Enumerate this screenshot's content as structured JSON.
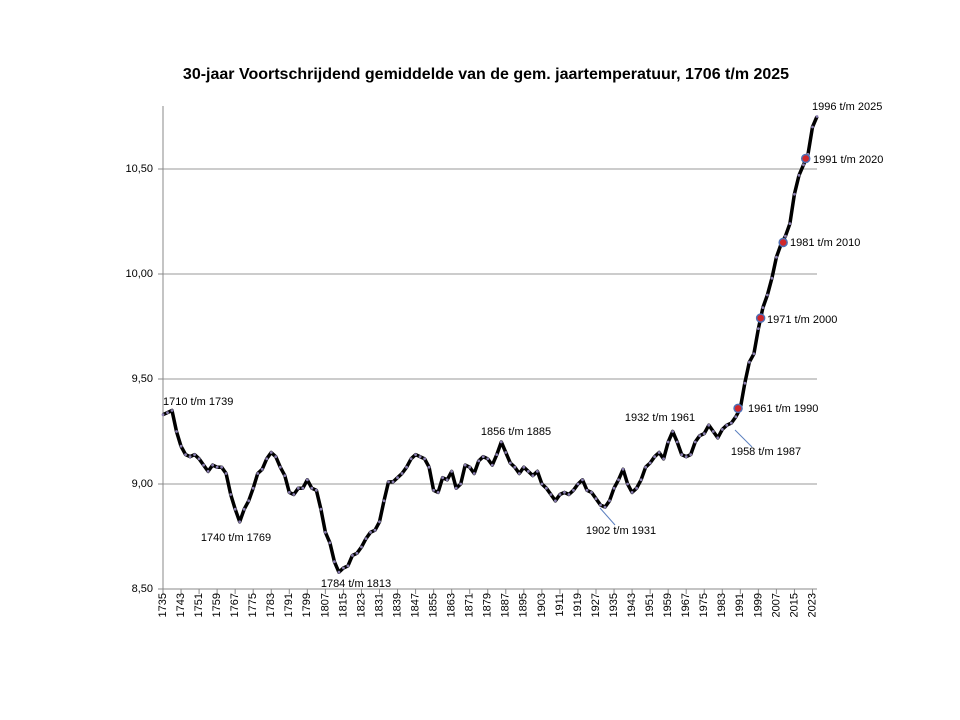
{
  "chart_data": {
    "type": "line",
    "title": "30-jaar Voortschrijdend gemiddelde van de gem. jaartemperatuur, 1706 t/m 2025",
    "x": [
      1735,
      1737,
      1739,
      1741,
      1743,
      1745,
      1747,
      1749,
      1751,
      1753,
      1755,
      1757,
      1759,
      1761,
      1763,
      1765,
      1767,
      1769,
      1771,
      1773,
      1775,
      1777,
      1779,
      1781,
      1783,
      1785,
      1787,
      1789,
      1791,
      1793,
      1795,
      1797,
      1799,
      1801,
      1803,
      1805,
      1807,
      1809,
      1811,
      1813,
      1815,
      1817,
      1819,
      1821,
      1823,
      1825,
      1827,
      1829,
      1831,
      1833,
      1835,
      1837,
      1839,
      1841,
      1843,
      1845,
      1847,
      1849,
      1851,
      1853,
      1855,
      1857,
      1859,
      1861,
      1863,
      1865,
      1867,
      1869,
      1871,
      1873,
      1875,
      1877,
      1879,
      1881,
      1883,
      1885,
      1887,
      1889,
      1891,
      1893,
      1895,
      1897,
      1899,
      1901,
      1903,
      1905,
      1907,
      1909,
      1911,
      1913,
      1915,
      1917,
      1919,
      1921,
      1923,
      1925,
      1927,
      1929,
      1931,
      1933,
      1935,
      1937,
      1939,
      1941,
      1943,
      1945,
      1947,
      1949,
      1951,
      1953,
      1955,
      1957,
      1959,
      1961,
      1963,
      1965,
      1967,
      1969,
      1971,
      1973,
      1975,
      1977,
      1979,
      1981,
      1983,
      1985,
      1987,
      1989,
      1991,
      1993,
      1995,
      1997,
      1999,
      2001,
      2003,
      2005,
      2007,
      2009,
      2011,
      2013,
      2015,
      2017,
      2019,
      2021,
      2023,
      2025
    ],
    "values": [
      9.33,
      9.34,
      9.35,
      9.25,
      9.18,
      9.14,
      9.13,
      9.14,
      9.12,
      9.09,
      9.06,
      9.09,
      9.08,
      9.08,
      9.05,
      8.95,
      8.88,
      8.82,
      8.88,
      8.92,
      8.98,
      9.05,
      9.07,
      9.12,
      9.15,
      9.13,
      9.08,
      9.04,
      8.96,
      8.95,
      8.98,
      8.98,
      9.02,
      8.98,
      8.97,
      8.88,
      8.77,
      8.72,
      8.63,
      8.58,
      8.6,
      8.61,
      8.66,
      8.67,
      8.7,
      8.74,
      8.77,
      8.78,
      8.82,
      8.92,
      9.01,
      9.01,
      9.03,
      9.05,
      9.08,
      9.12,
      9.14,
      9.13,
      9.12,
      9.08,
      8.97,
      8.96,
      9.03,
      9.02,
      9.06,
      8.98,
      9.0,
      9.09,
      9.08,
      9.05,
      9.11,
      9.13,
      9.12,
      9.09,
      9.14,
      9.2,
      9.15,
      9.1,
      9.08,
      9.05,
      9.08,
      9.06,
      9.04,
      9.06,
      9.0,
      8.98,
      8.95,
      8.92,
      8.95,
      8.96,
      8.95,
      8.97,
      9.0,
      9.02,
      8.97,
      8.96,
      8.93,
      8.9,
      8.89,
      8.92,
      8.98,
      9.02,
      9.07,
      9.0,
      8.96,
      8.98,
      9.02,
      9.08,
      9.1,
      9.13,
      9.15,
      9.12,
      9.2,
      9.25,
      9.2,
      9.14,
      9.13,
      9.14,
      9.2,
      9.23,
      9.24,
      9.28,
      9.25,
      9.22,
      9.26,
      9.28,
      9.29,
      9.32,
      9.36,
      9.48,
      9.58,
      9.62,
      9.74,
      9.84,
      9.9,
      9.98,
      10.08,
      10.14,
      10.18,
      10.24,
      10.38,
      10.47,
      10.52,
      10.57,
      10.7,
      10.75
    ],
    "color": "#000000",
    "marker_color": "#8a7fb0",
    "xlim": [
      1735,
      2025
    ],
    "xticks": [
      1735,
      1743,
      1751,
      1759,
      1767,
      1775,
      1783,
      1791,
      1799,
      1807,
      1815,
      1823,
      1831,
      1839,
      1847,
      1855,
      1863,
      1871,
      1879,
      1887,
      1895,
      1903,
      1911,
      1919,
      1927,
      1935,
      1943,
      1951,
      1959,
      1967,
      1975,
      1983,
      1991,
      1999,
      2007,
      2015,
      2023
    ],
    "ylim": [
      8.5,
      10.8
    ],
    "yticks": [
      {
        "value": 8.5,
        "label": "8,50"
      },
      {
        "value": 9.0,
        "label": "9,00"
      },
      {
        "value": 9.5,
        "label": "9,50"
      },
      {
        "value": 10.0,
        "label": "10,00"
      },
      {
        "value": 10.5,
        "label": "10,50"
      }
    ],
    "grid": true,
    "annotations": [
      {
        "label": "1710 t/m 1739"
      },
      {
        "label": "1740 t/m 1769"
      },
      {
        "label": "1784 t/m 1813"
      },
      {
        "label": "1856 t/m 1885"
      },
      {
        "label": "1902 t/m 1931"
      },
      {
        "label": "1932 t/m 1961"
      },
      {
        "label": "1958 t/m 1987"
      },
      {
        "label": "1961 t/m 1990",
        "x": 1990,
        "value": 9.36
      },
      {
        "label": "1971 t/m 2000",
        "x": 2000,
        "value": 9.79
      },
      {
        "label": "1981 t/m 2010",
        "x": 2010,
        "value": 10.15
      },
      {
        "label": "1991 t/m 2020",
        "x": 2020,
        "value": 10.55
      },
      {
        "label": "1996 t/m 2025"
      }
    ],
    "highlight_color": "#d0262a"
  }
}
